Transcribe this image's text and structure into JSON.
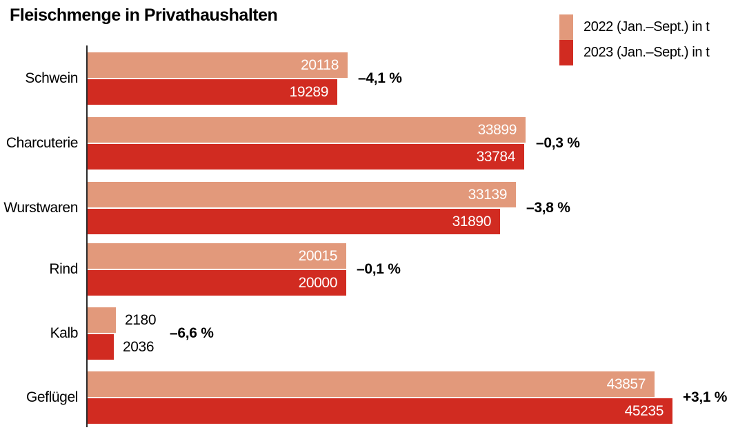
{
  "chart_data": {
    "type": "bar",
    "orientation": "horizontal",
    "title": "Fleischmenge in Privathaushalten",
    "unit": "t",
    "legend_position": "top-right",
    "grid": false,
    "colors": {
      "series_2022": "#E2997B",
      "series_2023": "#D12B21",
      "axis": "#2A2A2A",
      "value_inside_text": "#FFFFFF",
      "value_outside_text": "#000000"
    },
    "legend": [
      {
        "id": "2022",
        "label": "2022 (Jan.–Sept.) in t",
        "color": "#E2997B"
      },
      {
        "id": "2023",
        "label": "2023 (Jan.–Sept.) in t",
        "color": "#D12B21"
      }
    ],
    "categories": [
      "Schwein",
      "Charcuterie",
      "Wurstwaren",
      "Rind",
      "Kalb",
      "Geflügel"
    ],
    "series": [
      {
        "name": "2022 (Jan.–Sept.) in t",
        "values": [
          20118,
          33899,
          33139,
          20015,
          2180,
          43857
        ]
      },
      {
        "name": "2023 (Jan.–Sept.) in t",
        "values": [
          19289,
          33784,
          31890,
          20000,
          2036,
          45235
        ]
      }
    ],
    "changes": [
      "–4,1 %",
      "–0,3 %",
      "–3,8 %",
      "–0,1 %",
      "–6,6 %",
      "+3,1 %"
    ],
    "xlim": [
      0,
      45235
    ],
    "groups": [
      {
        "label": "Schwein",
        "v2022": 20118,
        "v2023": 19289,
        "change": "–4,1 %"
      },
      {
        "label": "Charcuterie",
        "v2022": 33899,
        "v2023": 33784,
        "change": "–0,3 %"
      },
      {
        "label": "Wurstwaren",
        "v2022": 33139,
        "v2023": 31890,
        "change": "–3,8 %"
      },
      {
        "label": "Rind",
        "v2022": 20015,
        "v2023": 20000,
        "change": "–0,1 %"
      },
      {
        "label": "Kalb",
        "v2022": 2180,
        "v2023": 2036,
        "change": "–6,6 %"
      },
      {
        "label": "Geflügel",
        "v2022": 43857,
        "v2023": 45235,
        "change": "+3,1 %"
      }
    ]
  }
}
